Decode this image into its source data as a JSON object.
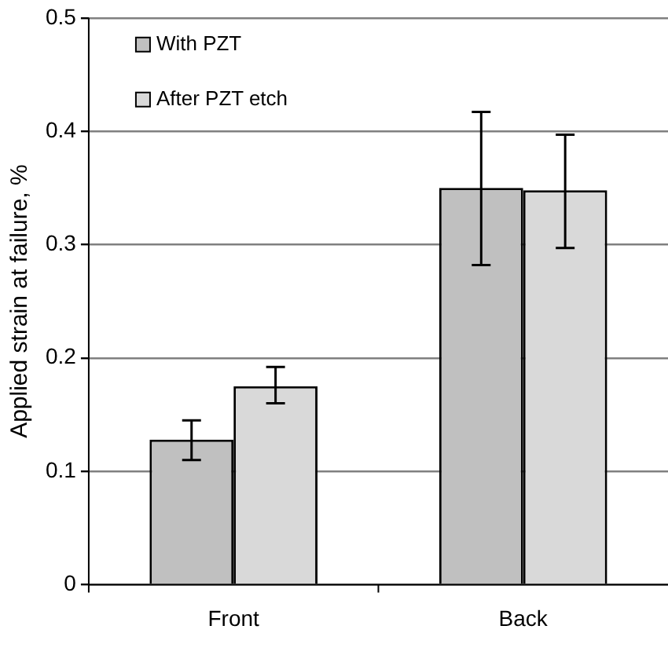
{
  "chart_data": {
    "type": "bar",
    "ylabel": "Applied strain at failure, %",
    "categories": [
      "Front",
      "Back"
    ],
    "series": [
      {
        "name": "With PZT",
        "color": "#c0c0c0",
        "values": [
          0.128,
          0.35
        ],
        "errors": [
          [
            0.11,
            0.145
          ],
          [
            0.282,
            0.417
          ]
        ]
      },
      {
        "name": "After PZT etch",
        "color": "#d9d9d9",
        "values": [
          0.175,
          0.348
        ],
        "errors": [
          [
            0.16,
            0.192
          ],
          [
            0.297,
            0.397
          ]
        ]
      }
    ],
    "ylim": [
      0,
      0.5
    ],
    "yticks": [
      0,
      0.1,
      0.2,
      0.3,
      0.4,
      0.5
    ],
    "grid": "y",
    "legend": "top left"
  }
}
